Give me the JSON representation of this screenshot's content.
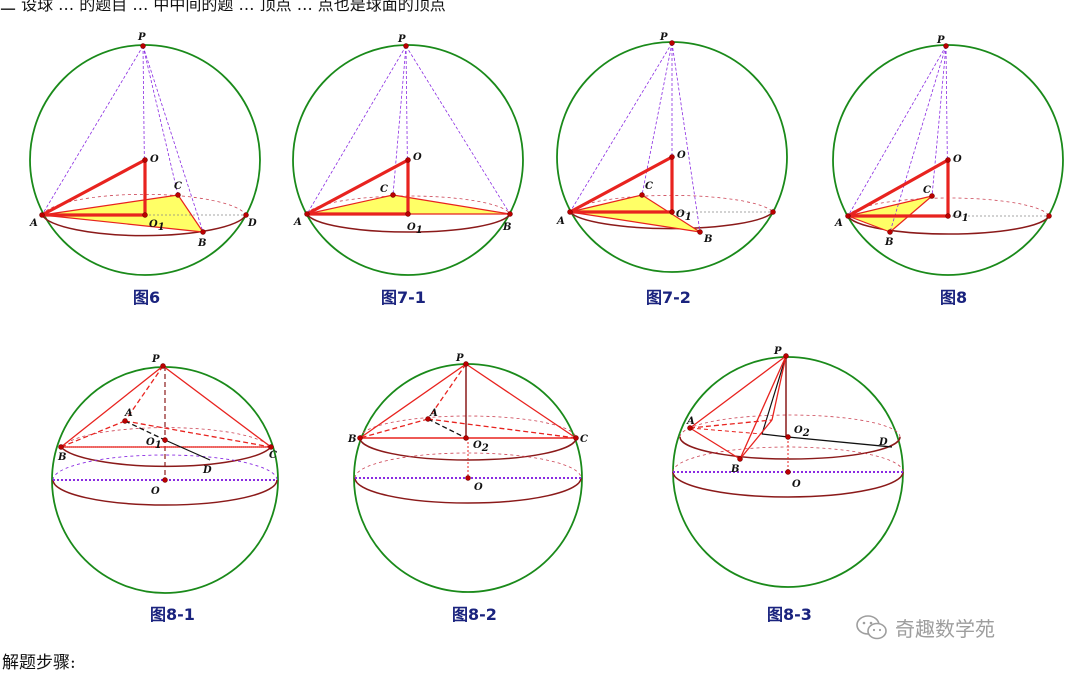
{
  "header": {
    "cut_text": "二 设球 … 的题目 … 中中间的题 … 顶点 … 点也是球面的顶点"
  },
  "figures": [
    {
      "id": "fig6",
      "caption": "图6",
      "points": [
        "P",
        "O",
        "C",
        "A",
        "O1",
        "B",
        "D"
      ]
    },
    {
      "id": "fig7-1",
      "caption": "图7-1",
      "points": [
        "P",
        "O",
        "C",
        "A",
        "O1",
        "B"
      ]
    },
    {
      "id": "fig7-2",
      "caption": "图7-2",
      "points": [
        "P",
        "O",
        "C",
        "A",
        "O1",
        "B"
      ]
    },
    {
      "id": "fig8",
      "caption": "图8",
      "points": [
        "P",
        "O",
        "C",
        "A",
        "O1",
        "B"
      ]
    },
    {
      "id": "fig8-1",
      "caption": "图8-1",
      "points": [
        "P",
        "A",
        "B",
        "C",
        "O1",
        "D",
        "O"
      ]
    },
    {
      "id": "fig8-2",
      "caption": "图8-2",
      "points": [
        "P",
        "A",
        "B",
        "C",
        "O2",
        "O"
      ]
    },
    {
      "id": "fig8-3",
      "caption": "图8-3",
      "points": [
        "P",
        "A",
        "B",
        "O2",
        "D",
        "O"
      ]
    }
  ],
  "watermark": {
    "text": "奇趣数学苑",
    "icon": "wechat-icon"
  },
  "footer": {
    "text": "解题步骤:"
  },
  "colors": {
    "sphere": "#1a8a1a",
    "triangle": "#e8231f",
    "fill": "#ffff66",
    "dashed": "#8a2be2",
    "ellipse": "#8b1a1a",
    "caption": "#1a237e"
  }
}
